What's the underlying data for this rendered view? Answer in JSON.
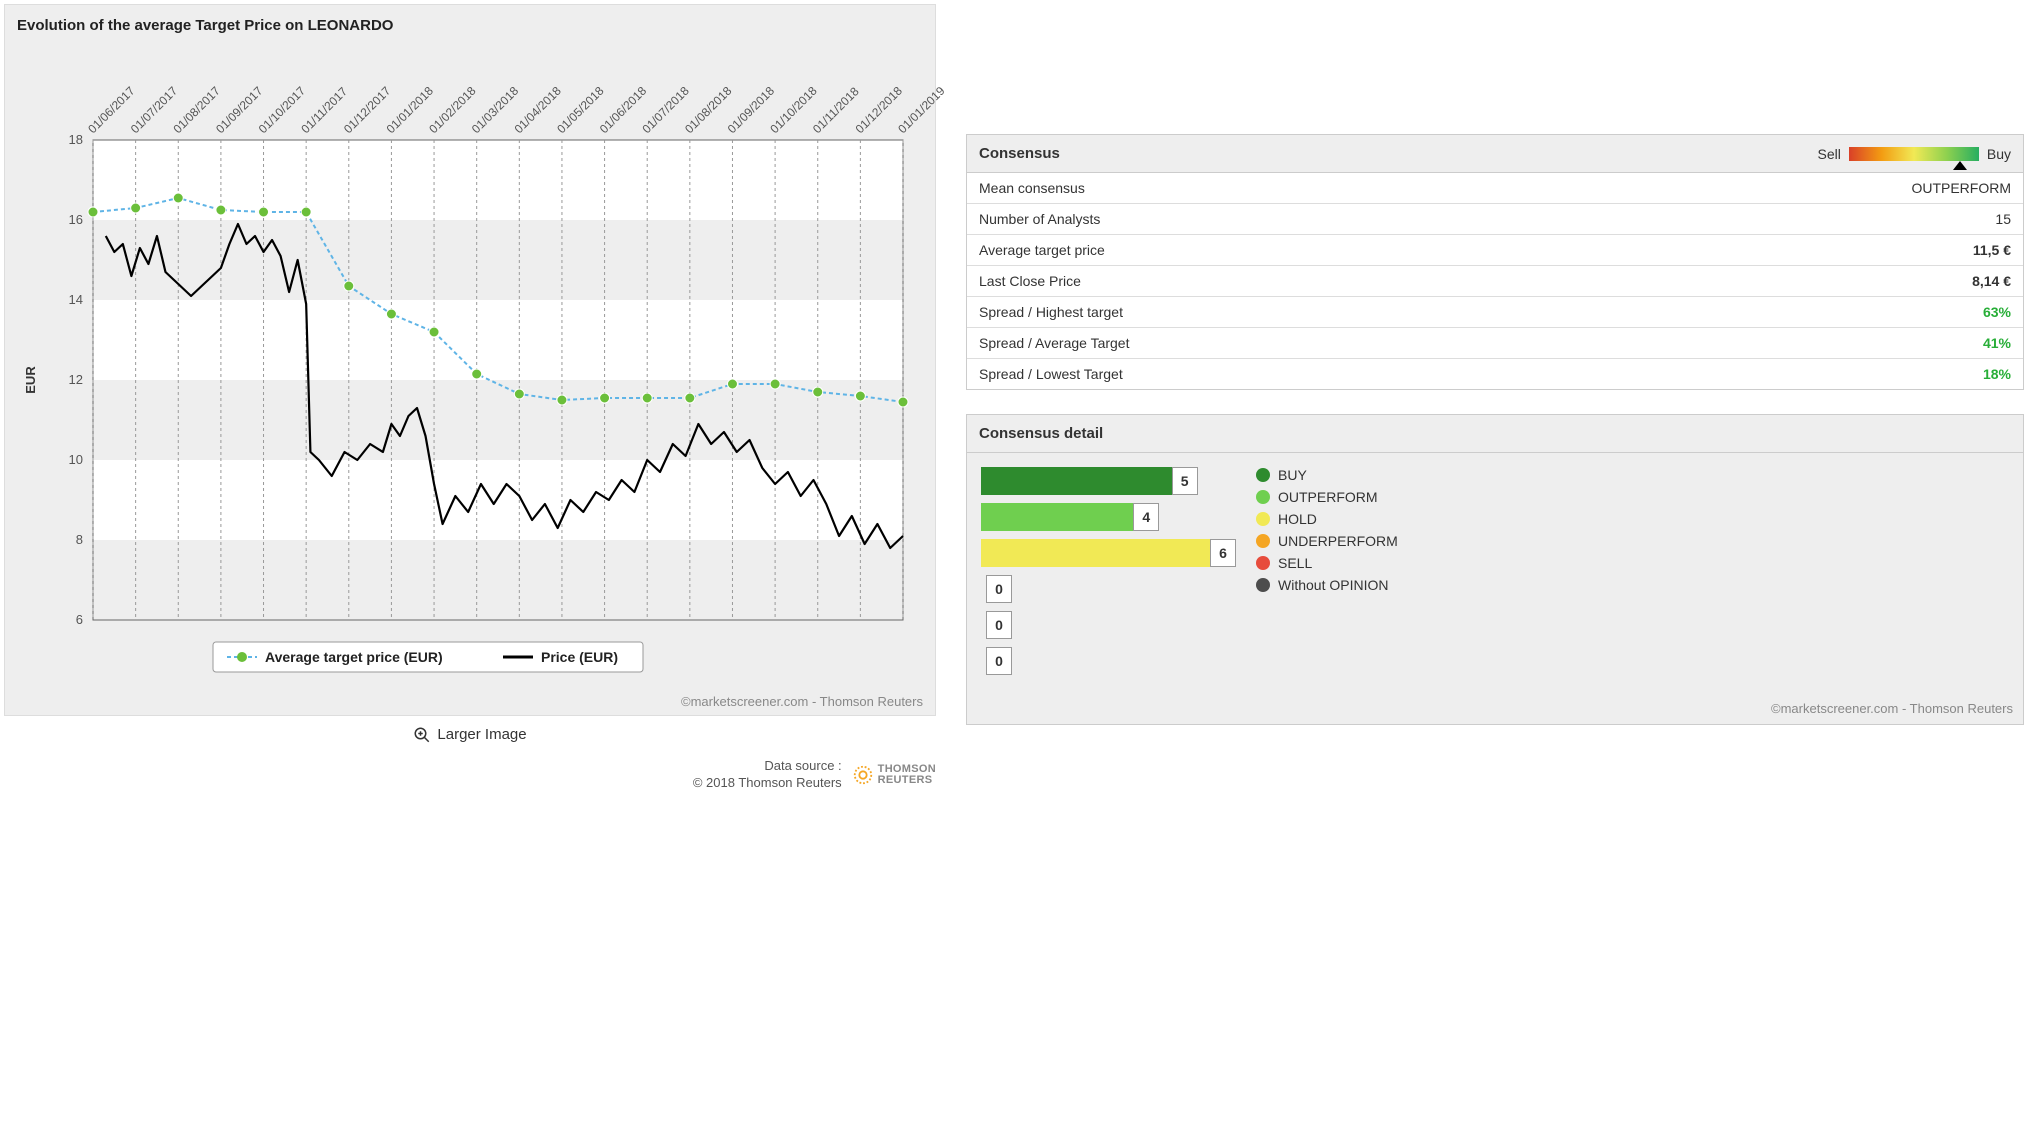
{
  "chart": {
    "title": "Evolution of the average Target Price on LEONARDO",
    "y_label": "EUR",
    "y_min": 6,
    "y_max": 18,
    "y_tick_step": 2,
    "background_band_color": "#ffffff",
    "background_alt_color": "#eeeeee",
    "grid_dash": "3,3",
    "grid_color": "#999999",
    "axis_color": "#666666",
    "x_labels": [
      "01/06/2017",
      "01/07/2017",
      "01/08/2017",
      "01/09/2017",
      "01/10/2017",
      "01/11/2017",
      "01/12/2017",
      "01/01/2018",
      "01/02/2018",
      "01/03/2018",
      "01/04/2018",
      "01/05/2018",
      "01/06/2018",
      "01/07/2018",
      "01/08/2018",
      "01/09/2018",
      "01/10/2018",
      "01/11/2018",
      "01/12/2018",
      "01/01/2019"
    ],
    "target_series": {
      "label": "Average target price (EUR)",
      "color": "#5fb4e6",
      "marker_color": "#6bbf3a",
      "marker_radius": 5,
      "line_width": 2,
      "dash": "4,3",
      "values": [
        16.2,
        16.3,
        16.55,
        16.25,
        16.2,
        16.2,
        14.35,
        13.65,
        13.2,
        12.15,
        11.65,
        11.5,
        11.55,
        11.55,
        11.55,
        11.9,
        11.9,
        11.7,
        11.6,
        11.45
      ]
    },
    "price_series": {
      "label": "Price (EUR)",
      "color": "#000000",
      "line_width": 2.2,
      "points": [
        [
          0.3,
          15.6
        ],
        [
          0.5,
          15.2
        ],
        [
          0.7,
          15.4
        ],
        [
          0.9,
          14.6
        ],
        [
          1.1,
          15.3
        ],
        [
          1.3,
          14.9
        ],
        [
          1.5,
          15.6
        ],
        [
          1.7,
          14.7
        ],
        [
          2.0,
          14.4
        ],
        [
          2.3,
          14.1
        ],
        [
          2.6,
          14.4
        ],
        [
          3.0,
          14.8
        ],
        [
          3.2,
          15.4
        ],
        [
          3.4,
          15.9
        ],
        [
          3.6,
          15.4
        ],
        [
          3.8,
          15.6
        ],
        [
          4.0,
          15.2
        ],
        [
          4.2,
          15.5
        ],
        [
          4.4,
          15.1
        ],
        [
          4.6,
          14.2
        ],
        [
          4.8,
          15.0
        ],
        [
          5.0,
          13.9
        ],
        [
          5.1,
          10.2
        ],
        [
          5.3,
          10.0
        ],
        [
          5.6,
          9.6
        ],
        [
          5.9,
          10.2
        ],
        [
          6.2,
          10.0
        ],
        [
          6.5,
          10.4
        ],
        [
          6.8,
          10.2
        ],
        [
          7.0,
          10.9
        ],
        [
          7.2,
          10.6
        ],
        [
          7.4,
          11.1
        ],
        [
          7.6,
          11.3
        ],
        [
          7.8,
          10.6
        ],
        [
          8.0,
          9.4
        ],
        [
          8.2,
          8.4
        ],
        [
          8.5,
          9.1
        ],
        [
          8.8,
          8.7
        ],
        [
          9.1,
          9.4
        ],
        [
          9.4,
          8.9
        ],
        [
          9.7,
          9.4
        ],
        [
          10.0,
          9.1
        ],
        [
          10.3,
          8.5
        ],
        [
          10.6,
          8.9
        ],
        [
          10.9,
          8.3
        ],
        [
          11.2,
          9.0
        ],
        [
          11.5,
          8.7
        ],
        [
          11.8,
          9.2
        ],
        [
          12.1,
          9.0
        ],
        [
          12.4,
          9.5
        ],
        [
          12.7,
          9.2
        ],
        [
          13.0,
          10.0
        ],
        [
          13.3,
          9.7
        ],
        [
          13.6,
          10.4
        ],
        [
          13.9,
          10.1
        ],
        [
          14.2,
          10.9
        ],
        [
          14.5,
          10.4
        ],
        [
          14.8,
          10.7
        ],
        [
          15.1,
          10.2
        ],
        [
          15.4,
          10.5
        ],
        [
          15.7,
          9.8
        ],
        [
          16.0,
          9.4
        ],
        [
          16.3,
          9.7
        ],
        [
          16.6,
          9.1
        ],
        [
          16.9,
          9.5
        ],
        [
          17.2,
          8.9
        ],
        [
          17.5,
          8.1
        ],
        [
          17.8,
          8.6
        ],
        [
          18.1,
          7.9
        ],
        [
          18.4,
          8.4
        ],
        [
          18.7,
          7.8
        ],
        [
          19.0,
          8.1
        ]
      ]
    },
    "credit": "©marketscreener.com - Thomson Reuters",
    "larger_label": "Larger Image"
  },
  "source": {
    "line1": "Data source :",
    "line2": "© 2018 Thomson Reuters",
    "brand": "THOMSON REUTERS"
  },
  "consensus": {
    "title": "Consensus",
    "sell_label": "Sell",
    "buy_label": "Buy",
    "rows": [
      {
        "label": "Mean consensus",
        "value": "OUTPERFORM",
        "cls": ""
      },
      {
        "label": "Number of Analysts",
        "value": "15",
        "cls": ""
      },
      {
        "label": "Average target price",
        "value": "11,5 €",
        "cls": "bold"
      },
      {
        "label": "Last Close Price",
        "value": "8,14 €",
        "cls": "bold"
      },
      {
        "label": "Spread / Highest target",
        "value": "63%",
        "cls": "green"
      },
      {
        "label": "Spread / Average Target",
        "value": "41%",
        "cls": "green"
      },
      {
        "label": "Spread / Lowest Target",
        "value": "18%",
        "cls": "green"
      }
    ]
  },
  "detail": {
    "title": "Consensus detail",
    "max": 6,
    "items": [
      {
        "label": "BUY",
        "count": 5,
        "color": "#2e8b2e"
      },
      {
        "label": "OUTPERFORM",
        "count": 4,
        "color": "#6fcf4f"
      },
      {
        "label": "HOLD",
        "count": 6,
        "color": "#f1e955"
      },
      {
        "label": "UNDERPERFORM",
        "count": 0,
        "color": "#f5a623"
      },
      {
        "label": "SELL",
        "count": 0,
        "color": "#e74c3c"
      },
      {
        "label": "Without OPINION",
        "count": 0,
        "color": "#4d4d4d"
      }
    ],
    "credit": "©marketscreener.com - Thomson Reuters"
  }
}
